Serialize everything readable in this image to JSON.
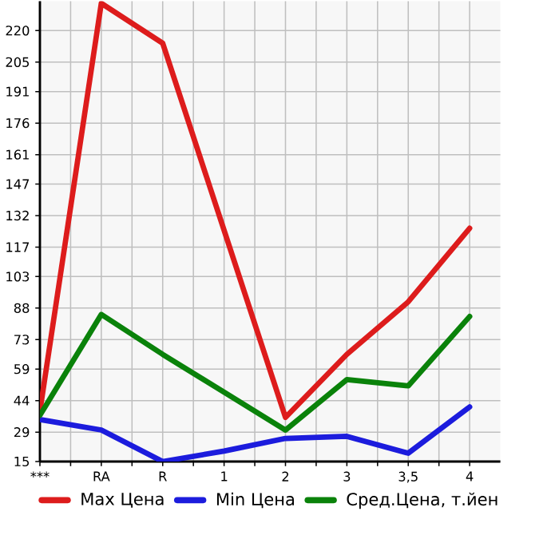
{
  "chart_data": {
    "type": "line",
    "categories": [
      "***",
      "RA",
      "R",
      "1",
      "2",
      "3",
      "3,5",
      "4"
    ],
    "series": [
      {
        "name": "Max Цена",
        "color": "#dd1c1c",
        "values": [
          39,
          233,
          214,
          125,
          36,
          66,
          91,
          126
        ]
      },
      {
        "name": "Min Цена",
        "color": "#1c1cdd",
        "values": [
          35,
          30,
          15,
          20,
          26,
          27,
          19,
          41
        ]
      },
      {
        "name": "Сред.Цена, т.йен",
        "color": "#0a820a",
        "values": [
          37,
          85,
          66,
          48,
          30,
          54,
          51,
          84
        ]
      }
    ],
    "ylim": [
      15,
      234
    ],
    "yticks": [
      15,
      29,
      44,
      59,
      73,
      88,
      103,
      117,
      132,
      147,
      161,
      176,
      191,
      205,
      220
    ],
    "grid": true,
    "legend": "bottom",
    "marker": "none",
    "line_style": "solid"
  }
}
